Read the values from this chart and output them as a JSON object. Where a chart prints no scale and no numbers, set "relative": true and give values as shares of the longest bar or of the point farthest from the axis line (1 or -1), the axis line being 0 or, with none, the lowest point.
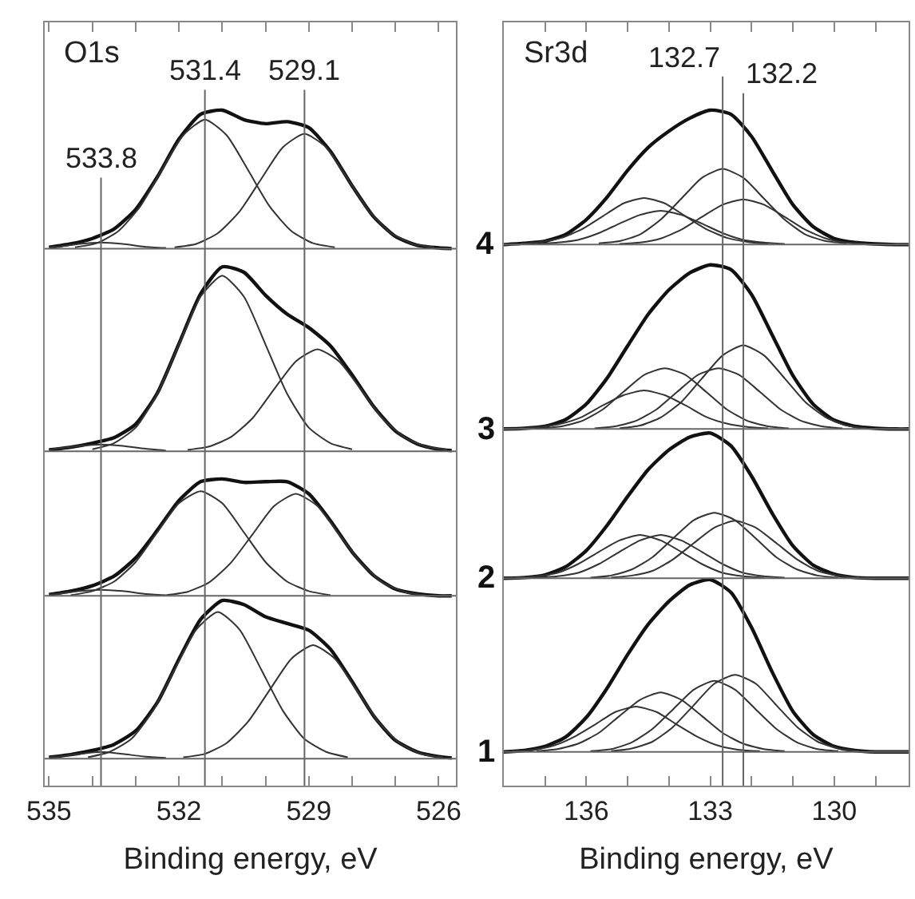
{
  "chart_data": [
    {
      "type": "line",
      "relative": true,
      "xlabel": "Binding energy, eV",
      "xlim": [
        535.1,
        525.6
      ],
      "xticks": [
        535,
        {
          "value": 534,
          "label": null
        },
        {
          "value": 533,
          "label": null
        },
        532,
        {
          "value": 531,
          "label": null
        },
        {
          "value": 530,
          "label": null
        },
        529,
        {
          "value": 528,
          "label": null
        },
        {
          "value": 527,
          "label": null
        },
        526
      ],
      "annotations": [
        "O1s"
      ],
      "ref_lines": [
        {
          "axis": "x",
          "value": 533.8,
          "label": "533.8",
          "color": "#666666"
        },
        {
          "axis": "x",
          "value": 531.4,
          "label": "531.4",
          "color": "#666666"
        },
        {
          "axis": "x",
          "value": 529.1,
          "label": "529.1",
          "color": "#666666"
        },
        {
          "axis": "y",
          "value": 0.795,
          "color": "#666666"
        },
        {
          "axis": "y",
          "value": 0.495,
          "color": "#666666"
        },
        {
          "axis": "y",
          "value": 0.281,
          "color": "#666666"
        },
        {
          "axis": "y",
          "value": 0.04,
          "color": "#666666"
        }
      ],
      "series": [
        {
          "color": "#111111",
          "x": [
            535,
            534.5,
            534,
            533.5,
            533,
            532.5,
            532,
            531.5,
            531,
            530.5,
            530,
            529.5,
            529,
            528.5,
            528,
            527.5,
            527,
            526.5,
            526,
            525.7
          ],
          "values": [
            0.797,
            0.802,
            0.81,
            0.824,
            0.853,
            0.901,
            0.957,
            0.994,
            1.0,
            0.986,
            0.98,
            0.983,
            0.974,
            0.939,
            0.888,
            0.842,
            0.813,
            0.8,
            0.796,
            0.795
          ]
        },
        {
          "color": "#333333",
          "x": [
            534.4,
            533.9,
            533.4,
            532.9,
            532.4,
            531.9,
            531.4,
            530.9,
            530.4,
            529.9,
            529.4,
            528.9,
            528.4
          ],
          "values": [
            0.797,
            0.803,
            0.821,
            0.857,
            0.911,
            0.963,
            0.986,
            0.963,
            0.911,
            0.857,
            0.821,
            0.803,
            0.797
          ]
        },
        {
          "color": "#333333",
          "x": [
            532.1,
            531.6,
            531.1,
            530.6,
            530.1,
            529.6,
            529.1,
            528.6,
            528.1,
            527.6,
            527.1,
            526.6,
            526.1
          ],
          "values": [
            0.797,
            0.802,
            0.818,
            0.85,
            0.898,
            0.945,
            0.965,
            0.945,
            0.898,
            0.85,
            0.818,
            0.802,
            0.797
          ]
        },
        {
          "color": "#333333",
          "x": [
            535.0,
            534.8,
            534.3,
            533.8,
            533.3,
            532.8,
            532.3
          ],
          "values": [
            0.797,
            0.798,
            0.802,
            0.804,
            0.802,
            0.798,
            0.796
          ]
        },
        {
          "color": "#111111",
          "x": [
            535,
            534.5,
            534,
            533.5,
            533,
            532.5,
            532,
            531.5,
            531,
            530.5,
            530,
            529.5,
            529,
            528.5,
            528,
            527.5,
            527,
            526.5,
            526,
            525.7
          ],
          "values": [
            0.497,
            0.501,
            0.507,
            0.515,
            0.535,
            0.581,
            0.654,
            0.728,
            0.768,
            0.76,
            0.726,
            0.698,
            0.678,
            0.651,
            0.608,
            0.561,
            0.525,
            0.506,
            0.498,
            0.496
          ]
        },
        {
          "color": "#333333",
          "x": [
            534,
            533.5,
            533,
            532.5,
            532,
            531.5,
            531,
            530.5,
            530,
            529.5,
            529,
            528.5,
            528
          ],
          "values": [
            0.498,
            0.507,
            0.53,
            0.58,
            0.653,
            0.724,
            0.755,
            0.724,
            0.653,
            0.58,
            0.53,
            0.507,
            0.498
          ]
        },
        {
          "color": "#333333",
          "x": [
            531.8,
            531.3,
            530.8,
            530.3,
            529.8,
            529.3,
            528.8,
            528.3,
            527.8,
            527.3,
            526.8,
            526.3,
            525.8
          ],
          "values": [
            0.497,
            0.502,
            0.516,
            0.544,
            0.587,
            0.628,
            0.646,
            0.628,
            0.587,
            0.544,
            0.516,
            0.502,
            0.497
          ]
        },
        {
          "color": "#333333",
          "x": [
            535.0,
            534.8,
            534.3,
            533.8,
            533.3,
            532.8,
            532.3
          ],
          "values": [
            0.497,
            0.499,
            0.503,
            0.505,
            0.503,
            0.499,
            0.496
          ]
        },
        {
          "color": "#111111",
          "x": [
            535,
            534.5,
            534,
            533.5,
            533,
            532.5,
            532,
            531.5,
            531,
            530.5,
            530,
            529.5,
            529,
            528.5,
            528,
            527.5,
            527,
            526.5,
            526,
            525.7
          ],
          "values": [
            0.283,
            0.288,
            0.296,
            0.31,
            0.337,
            0.378,
            0.422,
            0.45,
            0.454,
            0.449,
            0.45,
            0.45,
            0.432,
            0.392,
            0.346,
            0.311,
            0.291,
            0.284,
            0.281,
            0.281
          ]
        },
        {
          "color": "#333333",
          "x": [
            534.5,
            534,
            533.5,
            533,
            532.5,
            532,
            531.5,
            531,
            530.5,
            530,
            529.5,
            529,
            528.5
          ],
          "values": [
            0.282,
            0.288,
            0.302,
            0.331,
            0.375,
            0.418,
            0.436,
            0.418,
            0.375,
            0.331,
            0.302,
            0.288,
            0.282
          ]
        },
        {
          "color": "#333333",
          "x": [
            532.3,
            531.8,
            531.3,
            530.8,
            530.3,
            529.8,
            529.3,
            528.8,
            528.3,
            527.8,
            527.3,
            526.8,
            526.3
          ],
          "values": [
            0.282,
            0.287,
            0.301,
            0.33,
            0.372,
            0.414,
            0.432,
            0.414,
            0.372,
            0.33,
            0.301,
            0.287,
            0.282
          ]
        },
        {
          "color": "#333333",
          "x": [
            535.0,
            534.8,
            534.3,
            533.8,
            533.3,
            532.8,
            532.3
          ],
          "values": [
            0.283,
            0.284,
            0.288,
            0.29,
            0.288,
            0.284,
            0.282
          ]
        },
        {
          "color": "#111111",
          "x": [
            535,
            534.5,
            534,
            533.5,
            533,
            532.5,
            532,
            531.5,
            531,
            530.5,
            530,
            529.5,
            529,
            528.5,
            528,
            527.5,
            527,
            526.5,
            526,
            525.7
          ],
          "values": [
            0.042,
            0.046,
            0.052,
            0.061,
            0.081,
            0.123,
            0.187,
            0.246,
            0.274,
            0.268,
            0.25,
            0.24,
            0.23,
            0.202,
            0.154,
            0.103,
            0.067,
            0.05,
            0.043,
            0.041
          ]
        },
        {
          "color": "#333333",
          "x": [
            534.1,
            533.6,
            533.1,
            532.6,
            532.1,
            531.6,
            531.1,
            530.6,
            530.1,
            529.6,
            529.1,
            528.6,
            528.1
          ],
          "values": [
            0.042,
            0.05,
            0.069,
            0.111,
            0.172,
            0.231,
            0.257,
            0.231,
            0.172,
            0.111,
            0.069,
            0.05,
            0.042
          ]
        },
        {
          "color": "#333333",
          "x": [
            531.9,
            531.4,
            530.9,
            530.4,
            529.9,
            529.4,
            528.9,
            528.4,
            527.9,
            527.4,
            526.9,
            526.4,
            525.9
          ],
          "values": [
            0.042,
            0.047,
            0.063,
            0.095,
            0.142,
            0.188,
            0.208,
            0.188,
            0.142,
            0.095,
            0.063,
            0.047,
            0.042
          ]
        },
        {
          "color": "#333333",
          "x": [
            535.0,
            534.8,
            534.3,
            533.8,
            533.3,
            532.8,
            532.3
          ],
          "values": [
            0.042,
            0.043,
            0.047,
            0.05,
            0.047,
            0.043,
            0.041
          ]
        }
      ]
    },
    {
      "type": "line",
      "relative": true,
      "xlabel": "Binding energy, eV",
      "xlim": [
        138.0,
        128.2
      ],
      "xticks": [
        {
          "value": 137,
          "label": null
        },
        136,
        {
          "value": 135,
          "label": null
        },
        {
          "value": 134,
          "label": null
        },
        133,
        {
          "value": 132,
          "label": null
        },
        {
          "value": 131,
          "label": null
        },
        130,
        {
          "value": 129,
          "label": null
        }
      ],
      "annotations": [
        "Sr3d",
        "4",
        "3",
        "2",
        "1"
      ],
      "ref_lines": [
        {
          "axis": "x",
          "value": 132.7,
          "label": "132.7",
          "color": "#666666"
        },
        {
          "axis": "x",
          "value": 132.2,
          "label": "132.2",
          "color": "#666666"
        },
        {
          "axis": "y",
          "value": 0.801,
          "color": "#666666"
        },
        {
          "axis": "y",
          "value": 0.528,
          "color": "#666666"
        },
        {
          "axis": "y",
          "value": 0.307,
          "color": "#666666"
        },
        {
          "axis": "y",
          "value": 0.05,
          "color": "#666666"
        }
      ],
      "series": [
        {
          "color": "#111111",
          "x": [
            138,
            137.5,
            137,
            136.5,
            136,
            135.5,
            135,
            134.5,
            134,
            133.5,
            133,
            132.5,
            132,
            131.5,
            131,
            130.5,
            130,
            129.5,
            129,
            128.5,
            128.2
          ],
          "values": [
            0.801,
            0.803,
            0.806,
            0.816,
            0.838,
            0.871,
            0.911,
            0.945,
            0.969,
            0.988,
            1.0,
            0.994,
            0.961,
            0.91,
            0.86,
            0.827,
            0.81,
            0.804,
            0.802,
            0.801,
            0.801
          ]
        },
        {
          "color": "#333333",
          "x": [
            137.6,
            137.1,
            136.6,
            136.1,
            135.6,
            135.1,
            134.6,
            134.1,
            133.6,
            133.1,
            132.6,
            132.1,
            131.6
          ],
          "values": [
            0.802,
            0.805,
            0.811,
            0.824,
            0.843,
            0.862,
            0.87,
            0.862,
            0.843,
            0.824,
            0.811,
            0.805,
            0.802
          ]
        },
        {
          "color": "#333333",
          "x": [
            137.2,
            136.7,
            136.2,
            135.7,
            135.2,
            134.7,
            134.2,
            133.7,
            133.2,
            132.7,
            132.2,
            131.7,
            131.2
          ],
          "values": [
            0.802,
            0.804,
            0.808,
            0.818,
            0.832,
            0.845,
            0.851,
            0.845,
            0.832,
            0.818,
            0.808,
            0.804,
            0.802
          ]
        },
        {
          "color": "#333333",
          "x": [
            135.7,
            135.2,
            134.7,
            134.2,
            133.7,
            133.2,
            132.7,
            132.2,
            131.7,
            131.2,
            130.7,
            130.2,
            129.7
          ],
          "values": [
            0.803,
            0.806,
            0.816,
            0.838,
            0.869,
            0.9,
            0.913,
            0.9,
            0.869,
            0.838,
            0.816,
            0.806,
            0.803
          ]
        },
        {
          "color": "#333333",
          "x": [
            135.2,
            134.7,
            134.2,
            133.7,
            133.2,
            132.7,
            132.2,
            131.7,
            131.2,
            130.7,
            130.2,
            129.7,
            129.2
          ],
          "values": [
            0.802,
            0.804,
            0.81,
            0.823,
            0.842,
            0.86,
            0.868,
            0.86,
            0.842,
            0.823,
            0.81,
            0.804,
            0.802
          ]
        },
        {
          "color": "#111111",
          "x": [
            138,
            137.5,
            137,
            136.5,
            136,
            135.5,
            135,
            134.5,
            134,
            133.5,
            133,
            132.5,
            132,
            131.5,
            131,
            130.5,
            130,
            129.5,
            129,
            128.5,
            128.2
          ],
          "values": [
            0.528,
            0.529,
            0.532,
            0.542,
            0.565,
            0.603,
            0.651,
            0.698,
            0.734,
            0.759,
            0.771,
            0.764,
            0.727,
            0.667,
            0.607,
            0.564,
            0.541,
            0.532,
            0.529,
            0.528,
            0.528
          ]
        },
        {
          "color": "#333333",
          "x": [
            137.6,
            137.1,
            136.6,
            136.1,
            135.6,
            135.1,
            134.6,
            134.1,
            133.6,
            133.1,
            132.6,
            132.1,
            131.6
          ],
          "values": [
            0.529,
            0.531,
            0.536,
            0.546,
            0.563,
            0.578,
            0.585,
            0.578,
            0.563,
            0.546,
            0.536,
            0.531,
            0.529
          ]
        },
        {
          "color": "#333333",
          "x": [
            137.1,
            136.6,
            136.1,
            135.6,
            135.1,
            134.6,
            134.1,
            133.6,
            133.1,
            132.6,
            132.1,
            131.6,
            131.1
          ],
          "values": [
            0.529,
            0.532,
            0.54,
            0.557,
            0.583,
            0.608,
            0.618,
            0.608,
            0.583,
            0.557,
            0.54,
            0.532,
            0.529
          ]
        },
        {
          "color": "#333333",
          "x": [
            135.8,
            135.3,
            134.8,
            134.3,
            133.8,
            133.3,
            132.8,
            132.3,
            131.8,
            131.3,
            130.8,
            130.3,
            129.8
          ],
          "values": [
            0.529,
            0.532,
            0.54,
            0.557,
            0.583,
            0.608,
            0.618,
            0.608,
            0.583,
            0.557,
            0.54,
            0.532,
            0.529
          ]
        },
        {
          "color": "#333333",
          "x": [
            135.2,
            134.7,
            134.2,
            133.7,
            133.2,
            132.7,
            132.2,
            131.7,
            131.2,
            130.7,
            130.2,
            129.7,
            129.2
          ],
          "values": [
            0.529,
            0.533,
            0.545,
            0.568,
            0.603,
            0.637,
            0.652,
            0.637,
            0.603,
            0.568,
            0.545,
            0.533,
            0.529
          ]
        },
        {
          "color": "#111111",
          "x": [
            138,
            137.5,
            137,
            136.5,
            136,
            135.5,
            135,
            134.5,
            134,
            133.5,
            133,
            132.5,
            132,
            131.5,
            131,
            130.5,
            130,
            129.5,
            129,
            128.5,
            128.2
          ],
          "values": [
            0.307,
            0.308,
            0.312,
            0.324,
            0.348,
            0.385,
            0.428,
            0.468,
            0.497,
            0.516,
            0.522,
            0.503,
            0.458,
            0.403,
            0.355,
            0.326,
            0.313,
            0.308,
            0.307,
            0.307,
            0.307
          ]
        },
        {
          "color": "#333333",
          "x": [
            137.7,
            137.2,
            136.7,
            136.2,
            135.7,
            135.2,
            134.7,
            134.2,
            133.7,
            133.2,
            132.7,
            132.2,
            131.7
          ],
          "values": [
            0.308,
            0.31,
            0.315,
            0.328,
            0.346,
            0.363,
            0.371,
            0.363,
            0.346,
            0.328,
            0.315,
            0.31,
            0.308
          ]
        },
        {
          "color": "#333333",
          "x": [
            137.2,
            136.7,
            136.2,
            135.7,
            135.2,
            134.7,
            134.2,
            133.7,
            133.2,
            132.7,
            132.2,
            131.7,
            131.2
          ],
          "values": [
            0.308,
            0.31,
            0.315,
            0.328,
            0.346,
            0.363,
            0.371,
            0.363,
            0.346,
            0.328,
            0.315,
            0.31,
            0.308
          ]
        },
        {
          "color": "#333333",
          "x": [
            135.9,
            135.4,
            134.9,
            134.4,
            133.9,
            133.4,
            132.9,
            132.4,
            131.9,
            131.4,
            130.9,
            130.4,
            129.9
          ],
          "values": [
            0.308,
            0.311,
            0.32,
            0.338,
            0.366,
            0.393,
            0.404,
            0.393,
            0.366,
            0.338,
            0.32,
            0.311,
            0.308
          ]
        },
        {
          "color": "#333333",
          "x": [
            135.4,
            134.9,
            134.4,
            133.9,
            133.4,
            132.9,
            132.4,
            131.9,
            131.4,
            130.9,
            130.4,
            129.9,
            129.4
          ],
          "values": [
            0.308,
            0.311,
            0.318,
            0.335,
            0.359,
            0.382,
            0.392,
            0.382,
            0.359,
            0.335,
            0.318,
            0.311,
            0.308
          ]
        },
        {
          "color": "#111111",
          "x": [
            138,
            137.5,
            137,
            136.5,
            136,
            135.5,
            135,
            134.5,
            134,
            133.5,
            133,
            132.5,
            132,
            131.5,
            131,
            130.5,
            130,
            129.5,
            129,
            128.5,
            128.2
          ],
          "values": [
            0.05,
            0.052,
            0.058,
            0.072,
            0.101,
            0.144,
            0.194,
            0.239,
            0.273,
            0.297,
            0.305,
            0.286,
            0.234,
            0.168,
            0.11,
            0.075,
            0.058,
            0.052,
            0.05,
            0.05,
            0.05
          ]
        },
        {
          "color": "#333333",
          "x": [
            137.8,
            137.3,
            136.8,
            136.3,
            135.8,
            135.3,
            134.8,
            134.3,
            133.8,
            133.3,
            132.8,
            132.3,
            131.8
          ],
          "values": [
            0.051,
            0.053,
            0.059,
            0.072,
            0.09,
            0.109,
            0.117,
            0.109,
            0.09,
            0.072,
            0.059,
            0.053,
            0.051
          ]
        },
        {
          "color": "#333333",
          "x": [
            137.2,
            136.7,
            136.2,
            135.7,
            135.2,
            134.7,
            134.2,
            133.7,
            133.2,
            132.7,
            132.2,
            131.7,
            131.2
          ],
          "values": [
            0.051,
            0.054,
            0.062,
            0.078,
            0.103,
            0.127,
            0.138,
            0.127,
            0.103,
            0.078,
            0.062,
            0.054,
            0.051
          ]
        },
        {
          "color": "#333333",
          "x": [
            135.9,
            135.4,
            134.9,
            134.4,
            133.9,
            133.4,
            132.9,
            132.4,
            131.9,
            131.4,
            130.9,
            130.4,
            129.9
          ],
          "values": [
            0.051,
            0.054,
            0.064,
            0.084,
            0.113,
            0.142,
            0.155,
            0.142,
            0.113,
            0.084,
            0.064,
            0.054,
            0.051
          ]
        },
        {
          "color": "#333333",
          "x": [
            135.4,
            134.9,
            134.4,
            133.9,
            133.4,
            132.9,
            132.4,
            131.9,
            131.4,
            130.9,
            130.4,
            129.9,
            129.4
          ],
          "values": [
            0.051,
            0.055,
            0.065,
            0.087,
            0.119,
            0.151,
            0.164,
            0.151,
            0.119,
            0.087,
            0.065,
            0.055,
            0.051
          ]
        }
      ]
    }
  ]
}
